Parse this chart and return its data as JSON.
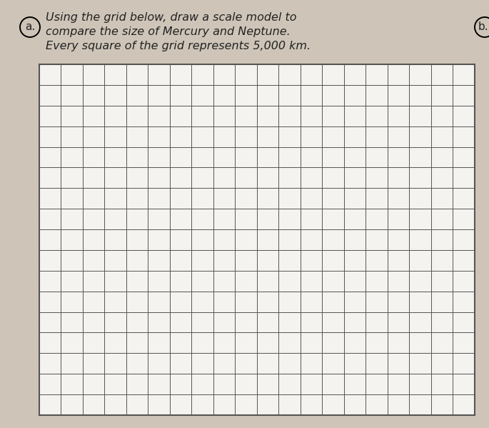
{
  "page_background": "#cec5b8",
  "grid_bg_color": "#f5f3f0",
  "grid_line_color": "#555555",
  "grid_cols": 20,
  "grid_rows": 17,
  "label_a_text": "a.",
  "label_b_text": "b.",
  "instruction_line1": "Using the grid below, draw a scale model to",
  "instruction_line2": "compare the size of Mercury and Neptune.",
  "instruction_line3": "Every square of the grid represents 5,000 km.",
  "font_size_instruction": 11.5,
  "font_size_label": 11,
  "text_color": "#222222"
}
